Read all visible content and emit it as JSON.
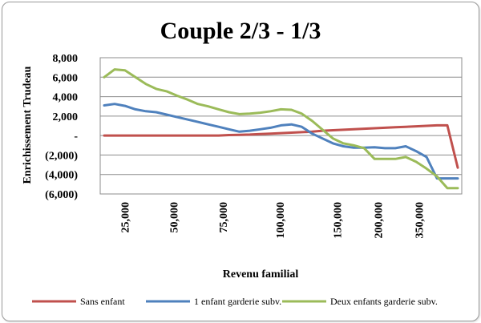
{
  "chart_data": {
    "type": "line",
    "title": "Couple 2/3 - 1/3",
    "xlabel": "Revenu familial",
    "ylabel": "Enrichissement Trudeau",
    "ylim": [
      -6000,
      8000
    ],
    "yticks": [
      -6000,
      -4000,
      -2000,
      0,
      2000,
      4000,
      6000,
      8000
    ],
    "ytick_labels": [
      "(6,000)",
      "(4,000)",
      "(2,000)",
      "-",
      "2,000",
      "4,000",
      "6,000",
      "8,000"
    ],
    "xtick_labels": [
      "25,000",
      "50,000",
      "75,000",
      "100,000",
      "150,000",
      "200,000",
      "350,000"
    ],
    "grid": true,
    "legend_position": "bottom",
    "x_points": 35,
    "series": [
      {
        "name": "Sans enfant",
        "color": "#c0504d",
        "values": [
          0,
          0,
          0,
          0,
          0,
          0,
          0,
          0,
          0,
          0,
          0,
          0,
          50,
          80,
          100,
          150,
          200,
          250,
          300,
          350,
          400,
          500,
          550,
          600,
          650,
          700,
          750,
          800,
          850,
          900,
          950,
          1000,
          1050,
          1050,
          -3300
        ]
      },
      {
        "name": "1 enfant garderie subv.",
        "color": "#4f81bd",
        "values": [
          3100,
          3250,
          3050,
          2700,
          2500,
          2400,
          2150,
          1900,
          1650,
          1400,
          1150,
          900,
          650,
          400,
          500,
          650,
          800,
          1050,
          1150,
          900,
          200,
          -300,
          -800,
          -1100,
          -1250,
          -1250,
          -1200,
          -1300,
          -1300,
          -1100,
          -1600,
          -2200,
          -4400,
          -4400,
          -4400
        ]
      },
      {
        "name": "Deux enfants garderie subv.",
        "color": "#9bbb59",
        "values": [
          6000,
          6800,
          6700,
          6000,
          5300,
          4800,
          4550,
          4100,
          3700,
          3250,
          3000,
          2700,
          2400,
          2200,
          2250,
          2350,
          2500,
          2700,
          2650,
          2250,
          1500,
          600,
          -300,
          -800,
          -1000,
          -1300,
          -2400,
          -2400,
          -2400,
          -2200,
          -2700,
          -3400,
          -4200,
          -5400,
          -5400
        ]
      }
    ]
  }
}
